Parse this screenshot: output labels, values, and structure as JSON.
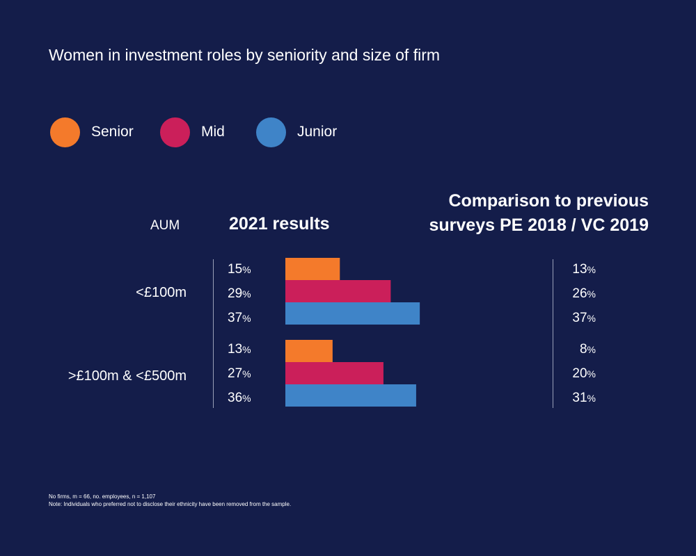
{
  "title": "Women in investment roles by seniority and size of firm",
  "legend": [
    {
      "label": "Senior",
      "color": "#f47a2b"
    },
    {
      "label": "Mid",
      "color": "#cb1f5a"
    },
    {
      "label": "Junior",
      "color": "#3f84c8"
    }
  ],
  "headers": {
    "aum": "AUM",
    "results": "2021 results",
    "comparison_line1": "Comparison to previous",
    "comparison_line2": "surveys PE 2018 / VC 2019"
  },
  "groups": [
    {
      "label": "<£100m",
      "rows": [
        {
          "value": "15",
          "prev": "13"
        },
        {
          "value": "29",
          "prev": "26"
        },
        {
          "value": "37",
          "prev": "37"
        }
      ]
    },
    {
      "label": ">£100m & <£500m",
      "rows": [
        {
          "value": "13",
          "prev": "8"
        },
        {
          "value": "27",
          "prev": "20"
        },
        {
          "value": "36",
          "prev": "31"
        }
      ]
    }
  ],
  "pct_sign": "%",
  "footnote": {
    "line1": "No firms, m = 66, no. employees, n = 1,107",
    "line2": "Note: Individuals who preferred not to disclose their ethnicity have been removed from the sample."
  },
  "chart_data": {
    "type": "bar",
    "orientation": "horizontal",
    "title": "Women in investment roles by seniority and size of firm",
    "categories": [
      "<£100m",
      ">£100m & <£500m"
    ],
    "series": [
      {
        "name": "Senior",
        "values": [
          15,
          13
        ],
        "previous": [
          13,
          8
        ],
        "color": "#f47a2b"
      },
      {
        "name": "Mid",
        "values": [
          29,
          27
        ],
        "previous": [
          26,
          20
        ],
        "color": "#cb1f5a"
      },
      {
        "name": "Junior",
        "values": [
          37,
          36
        ],
        "previous": [
          37,
          31
        ],
        "color": "#3f84c8"
      }
    ],
    "unit": "%",
    "grid": false,
    "legend_position": "top-left"
  }
}
